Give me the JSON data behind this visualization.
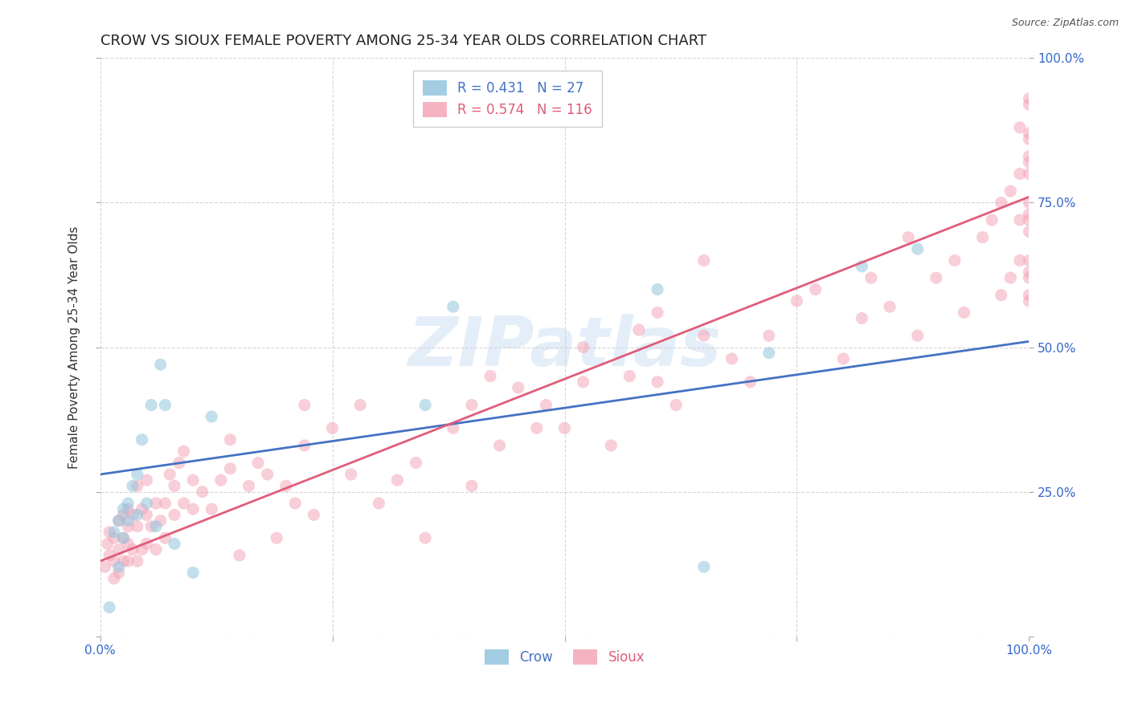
{
  "title": "CROW VS SIOUX FEMALE POVERTY AMONG 25-34 YEAR OLDS CORRELATION CHART",
  "source": "Source: ZipAtlas.com",
  "ylabel": "Female Poverty Among 25-34 Year Olds",
  "crow_R": 0.431,
  "crow_N": 27,
  "sioux_R": 0.574,
  "sioux_N": 116,
  "crow_color": "#92c5de",
  "sioux_color": "#f4a6b8",
  "crow_line_color": "#4472c4",
  "sioux_line_color": "#e05c7a",
  "watermark": "ZIPatlas",
  "xlim": [
    0,
    1
  ],
  "ylim": [
    0,
    1
  ],
  "crow_trend_x": [
    0,
    1
  ],
  "crow_trend_y": [
    0.28,
    0.51
  ],
  "sioux_trend_x": [
    0,
    1
  ],
  "sioux_trend_y": [
    0.13,
    0.76
  ],
  "background_color": "#ffffff",
  "grid_color": "#cccccc",
  "title_fontsize": 13,
  "axis_label_fontsize": 11,
  "tick_fontsize": 11,
  "legend_fontsize": 12,
  "marker_size": 120,
  "marker_alpha": 0.55,
  "crow_x": [
    0.01,
    0.015,
    0.02,
    0.02,
    0.025,
    0.025,
    0.03,
    0.03,
    0.035,
    0.04,
    0.04,
    0.045,
    0.05,
    0.055,
    0.06,
    0.065,
    0.07,
    0.08,
    0.1,
    0.12,
    0.35,
    0.38,
    0.6,
    0.65,
    0.72,
    0.82,
    0.88
  ],
  "crow_y": [
    0.05,
    0.18,
    0.12,
    0.2,
    0.17,
    0.22,
    0.2,
    0.23,
    0.26,
    0.21,
    0.28,
    0.34,
    0.23,
    0.4,
    0.19,
    0.47,
    0.4,
    0.16,
    0.11,
    0.38,
    0.4,
    0.57,
    0.6,
    0.12,
    0.49,
    0.64,
    0.67
  ],
  "sioux_x": [
    0.005,
    0.008,
    0.01,
    0.01,
    0.015,
    0.015,
    0.015,
    0.02,
    0.02,
    0.02,
    0.025,
    0.025,
    0.025,
    0.03,
    0.03,
    0.03,
    0.03,
    0.035,
    0.035,
    0.04,
    0.04,
    0.04,
    0.045,
    0.045,
    0.05,
    0.05,
    0.05,
    0.055,
    0.06,
    0.06,
    0.065,
    0.07,
    0.07,
    0.075,
    0.08,
    0.08,
    0.085,
    0.09,
    0.09,
    0.1,
    0.1,
    0.11,
    0.12,
    0.13,
    0.14,
    0.14,
    0.15,
    0.16,
    0.17,
    0.18,
    0.19,
    0.2,
    0.21,
    0.22,
    0.22,
    0.23,
    0.25,
    0.27,
    0.28,
    0.3,
    0.32,
    0.34,
    0.35,
    0.38,
    0.4,
    0.4,
    0.42,
    0.43,
    0.45,
    0.47,
    0.48,
    0.5,
    0.52,
    0.52,
    0.55,
    0.57,
    0.58,
    0.6,
    0.6,
    0.62,
    0.65,
    0.65,
    0.68,
    0.7,
    0.72,
    0.75,
    0.77,
    0.8,
    0.82,
    0.83,
    0.85,
    0.87,
    0.88,
    0.9,
    0.92,
    0.93,
    0.95,
    0.96,
    0.97,
    0.97,
    0.98,
    0.98,
    0.99,
    0.99,
    0.99,
    0.99,
    1.0,
    1.0,
    1.0,
    1.0,
    1.0,
    1.0,
    1.0,
    1.0,
    1.0,
    1.0,
    1.0,
    1.0,
    1.0,
    1.0,
    1.0,
    1.0
  ],
  "sioux_y": [
    0.12,
    0.16,
    0.14,
    0.18,
    0.1,
    0.13,
    0.17,
    0.11,
    0.15,
    0.2,
    0.13,
    0.17,
    0.21,
    0.13,
    0.16,
    0.19,
    0.22,
    0.15,
    0.21,
    0.13,
    0.19,
    0.26,
    0.15,
    0.22,
    0.16,
    0.21,
    0.27,
    0.19,
    0.15,
    0.23,
    0.2,
    0.17,
    0.23,
    0.28,
    0.21,
    0.26,
    0.3,
    0.23,
    0.32,
    0.22,
    0.27,
    0.25,
    0.22,
    0.27,
    0.29,
    0.34,
    0.14,
    0.26,
    0.3,
    0.28,
    0.17,
    0.26,
    0.23,
    0.33,
    0.4,
    0.21,
    0.36,
    0.28,
    0.4,
    0.23,
    0.27,
    0.3,
    0.17,
    0.36,
    0.4,
    0.26,
    0.45,
    0.33,
    0.43,
    0.36,
    0.4,
    0.36,
    0.44,
    0.5,
    0.33,
    0.45,
    0.53,
    0.44,
    0.56,
    0.4,
    0.52,
    0.65,
    0.48,
    0.44,
    0.52,
    0.58,
    0.6,
    0.48,
    0.55,
    0.62,
    0.57,
    0.69,
    0.52,
    0.62,
    0.65,
    0.56,
    0.69,
    0.72,
    0.75,
    0.59,
    0.62,
    0.77,
    0.65,
    0.72,
    0.8,
    0.88,
    0.58,
    0.65,
    0.7,
    0.75,
    0.83,
    0.62,
    0.72,
    0.82,
    0.87,
    0.92,
    0.59,
    0.63,
    0.73,
    0.8,
    0.86,
    0.93
  ]
}
